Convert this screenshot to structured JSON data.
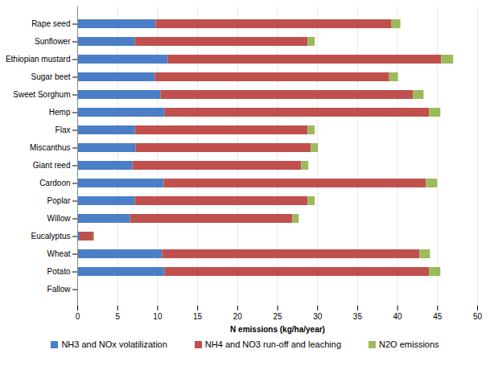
{
  "chart_data": {
    "type": "bar",
    "orientation": "horizontal",
    "stacked": true,
    "x_label": "N emissions (kg/ha/year)",
    "categories": [
      "Rape seed",
      "Sunflower",
      "Ethiopian mustard",
      "Sugar beet",
      "Sweet Sorghum",
      "Hemp",
      "Flax",
      "Miscanthus",
      "Giant reed",
      "Cardoon",
      "Poplar",
      "Willow",
      "Eucalyptus",
      "Wheat",
      "Potato",
      "Fallow"
    ],
    "series": [
      {
        "name": "NH3 and NOx volatilization",
        "color": "#4a7ec7",
        "values": [
          9.8,
          7.2,
          11.3,
          9.7,
          10.4,
          10.9,
          7.2,
          7.3,
          6.9,
          10.8,
          7.2,
          6.6,
          0.3,
          10.6,
          10.9,
          0
        ]
      },
      {
        "name": "NH4 and NO3 run-off and leaching",
        "color": "#c0504d",
        "values": [
          29.5,
          21.6,
          34.2,
          29.3,
          31.6,
          33.1,
          21.6,
          21.9,
          21.1,
          32.8,
          21.6,
          20.3,
          1.7,
          32.2,
          33.1,
          0
        ]
      },
      {
        "name": "N2O emissions",
        "color": "#9bbb59",
        "values": [
          1.1,
          0.9,
          1.5,
          1.1,
          1.3,
          1.4,
          0.9,
          0.9,
          0.9,
          1.4,
          0.9,
          0.8,
          0.1,
          1.3,
          1.4,
          0
        ]
      }
    ],
    "xlim": [
      0,
      50
    ],
    "xticks": [
      0,
      5,
      10,
      15,
      20,
      25,
      30,
      35,
      40,
      45,
      50
    ],
    "grid": true,
    "legend": "bottom"
  }
}
